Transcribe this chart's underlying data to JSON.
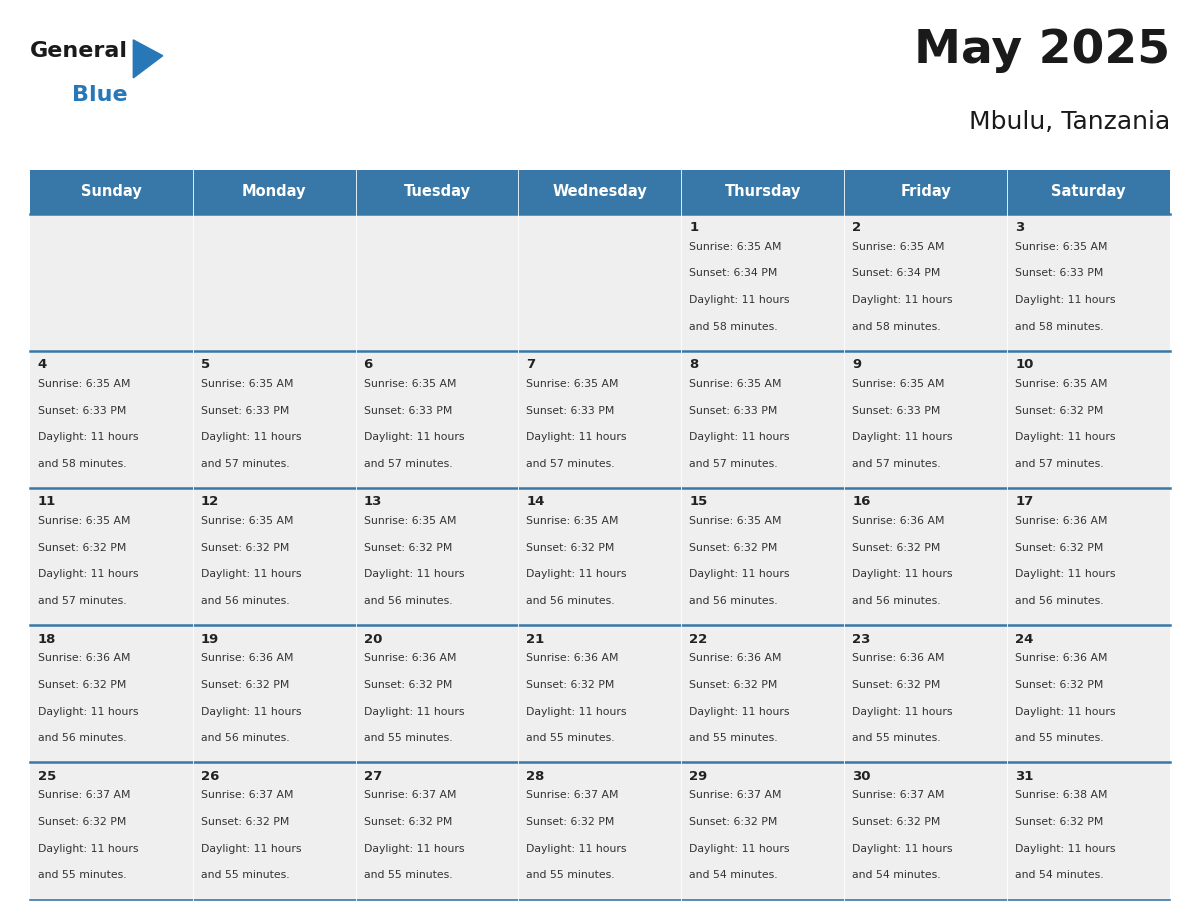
{
  "title": "May 2025",
  "subtitle": "Mbulu, Tanzania",
  "header_bg": "#3878a8",
  "header_text": "#ffffff",
  "row_bg": "#efefef",
  "day_names": [
    "Sunday",
    "Monday",
    "Tuesday",
    "Wednesday",
    "Thursday",
    "Friday",
    "Saturday"
  ],
  "weeks": [
    [
      {
        "day": 0
      },
      {
        "day": 0
      },
      {
        "day": 0
      },
      {
        "day": 0
      },
      {
        "day": 1,
        "sunrise": "6:35 AM",
        "sunset": "6:34 PM",
        "daylight_hrs": "11",
        "daylight_min": "58"
      },
      {
        "day": 2,
        "sunrise": "6:35 AM",
        "sunset": "6:34 PM",
        "daylight_hrs": "11",
        "daylight_min": "58"
      },
      {
        "day": 3,
        "sunrise": "6:35 AM",
        "sunset": "6:33 PM",
        "daylight_hrs": "11",
        "daylight_min": "58"
      }
    ],
    [
      {
        "day": 4,
        "sunrise": "6:35 AM",
        "sunset": "6:33 PM",
        "daylight_hrs": "11",
        "daylight_min": "58"
      },
      {
        "day": 5,
        "sunrise": "6:35 AM",
        "sunset": "6:33 PM",
        "daylight_hrs": "11",
        "daylight_min": "57"
      },
      {
        "day": 6,
        "sunrise": "6:35 AM",
        "sunset": "6:33 PM",
        "daylight_hrs": "11",
        "daylight_min": "57"
      },
      {
        "day": 7,
        "sunrise": "6:35 AM",
        "sunset": "6:33 PM",
        "daylight_hrs": "11",
        "daylight_min": "57"
      },
      {
        "day": 8,
        "sunrise": "6:35 AM",
        "sunset": "6:33 PM",
        "daylight_hrs": "11",
        "daylight_min": "57"
      },
      {
        "day": 9,
        "sunrise": "6:35 AM",
        "sunset": "6:33 PM",
        "daylight_hrs": "11",
        "daylight_min": "57"
      },
      {
        "day": 10,
        "sunrise": "6:35 AM",
        "sunset": "6:32 PM",
        "daylight_hrs": "11",
        "daylight_min": "57"
      }
    ],
    [
      {
        "day": 11,
        "sunrise": "6:35 AM",
        "sunset": "6:32 PM",
        "daylight_hrs": "11",
        "daylight_min": "57"
      },
      {
        "day": 12,
        "sunrise": "6:35 AM",
        "sunset": "6:32 PM",
        "daylight_hrs": "11",
        "daylight_min": "56"
      },
      {
        "day": 13,
        "sunrise": "6:35 AM",
        "sunset": "6:32 PM",
        "daylight_hrs": "11",
        "daylight_min": "56"
      },
      {
        "day": 14,
        "sunrise": "6:35 AM",
        "sunset": "6:32 PM",
        "daylight_hrs": "11",
        "daylight_min": "56"
      },
      {
        "day": 15,
        "sunrise": "6:35 AM",
        "sunset": "6:32 PM",
        "daylight_hrs": "11",
        "daylight_min": "56"
      },
      {
        "day": 16,
        "sunrise": "6:36 AM",
        "sunset": "6:32 PM",
        "daylight_hrs": "11",
        "daylight_min": "56"
      },
      {
        "day": 17,
        "sunrise": "6:36 AM",
        "sunset": "6:32 PM",
        "daylight_hrs": "11",
        "daylight_min": "56"
      }
    ],
    [
      {
        "day": 18,
        "sunrise": "6:36 AM",
        "sunset": "6:32 PM",
        "daylight_hrs": "11",
        "daylight_min": "56"
      },
      {
        "day": 19,
        "sunrise": "6:36 AM",
        "sunset": "6:32 PM",
        "daylight_hrs": "11",
        "daylight_min": "56"
      },
      {
        "day": 20,
        "sunrise": "6:36 AM",
        "sunset": "6:32 PM",
        "daylight_hrs": "11",
        "daylight_min": "55"
      },
      {
        "day": 21,
        "sunrise": "6:36 AM",
        "sunset": "6:32 PM",
        "daylight_hrs": "11",
        "daylight_min": "55"
      },
      {
        "day": 22,
        "sunrise": "6:36 AM",
        "sunset": "6:32 PM",
        "daylight_hrs": "11",
        "daylight_min": "55"
      },
      {
        "day": 23,
        "sunrise": "6:36 AM",
        "sunset": "6:32 PM",
        "daylight_hrs": "11",
        "daylight_min": "55"
      },
      {
        "day": 24,
        "sunrise": "6:36 AM",
        "sunset": "6:32 PM",
        "daylight_hrs": "11",
        "daylight_min": "55"
      }
    ],
    [
      {
        "day": 25,
        "sunrise": "6:37 AM",
        "sunset": "6:32 PM",
        "daylight_hrs": "11",
        "daylight_min": "55"
      },
      {
        "day": 26,
        "sunrise": "6:37 AM",
        "sunset": "6:32 PM",
        "daylight_hrs": "11",
        "daylight_min": "55"
      },
      {
        "day": 27,
        "sunrise": "6:37 AM",
        "sunset": "6:32 PM",
        "daylight_hrs": "11",
        "daylight_min": "55"
      },
      {
        "day": 28,
        "sunrise": "6:37 AM",
        "sunset": "6:32 PM",
        "daylight_hrs": "11",
        "daylight_min": "55"
      },
      {
        "day": 29,
        "sunrise": "6:37 AM",
        "sunset": "6:32 PM",
        "daylight_hrs": "11",
        "daylight_min": "54"
      },
      {
        "day": 30,
        "sunrise": "6:37 AM",
        "sunset": "6:32 PM",
        "daylight_hrs": "11",
        "daylight_min": "54"
      },
      {
        "day": 31,
        "sunrise": "6:38 AM",
        "sunset": "6:32 PM",
        "daylight_hrs": "11",
        "daylight_min": "54"
      }
    ]
  ],
  "cell_text_color": "#333333",
  "cell_day_number_color": "#222222",
  "divider_color": "#3878a8",
  "background_color": "#ffffff",
  "title_color": "#1a1a1a",
  "logo_general_color": "#1a1a1a",
  "logo_blue_color": "#2878b8",
  "logo_triangle_color": "#2878b8"
}
